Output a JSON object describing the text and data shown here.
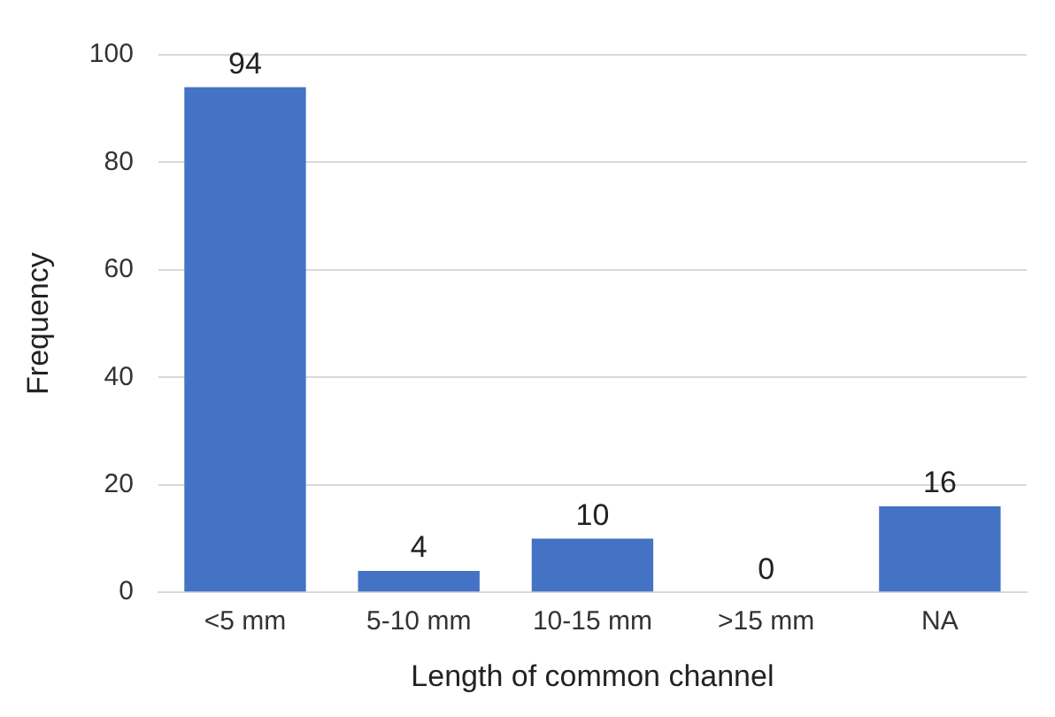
{
  "chart_data": {
    "type": "bar",
    "xlabel": "Length of common channel",
    "ylabel": "Frequency",
    "categories": [
      "<5 mm",
      "5-10 mm",
      "10-15 mm",
      ">15 mm",
      "NA"
    ],
    "values": [
      94,
      4,
      10,
      0,
      16
    ],
    "color": "#4472c4",
    "ylim": [
      0,
      100
    ],
    "yticks": [
      0,
      20,
      40,
      60,
      80,
      100
    ],
    "grid": "y",
    "data_labels": true
  }
}
